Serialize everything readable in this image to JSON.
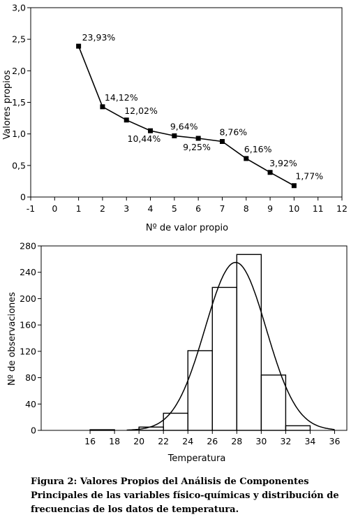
{
  "chart_data": [
    {
      "type": "line",
      "ylabel": "Valores propios",
      "xlabel": "Nº de valor propio",
      "xlim": [
        -1,
        12
      ],
      "ylim": [
        0,
        3.0
      ],
      "x_ticks": [
        "-1",
        "0",
        "1",
        "2",
        "3",
        "4",
        "5",
        "6",
        "7",
        "8",
        "9",
        "10",
        "11",
        "12"
      ],
      "y_ticks": [
        "0",
        "0,5",
        "1,0",
        "1,5",
        "2,0",
        "2,5",
        "3,0"
      ],
      "x": [
        1,
        2,
        3,
        4,
        5,
        6,
        7,
        8,
        9,
        10
      ],
      "values": [
        2.39,
        1.43,
        1.22,
        1.05,
        0.97,
        0.93,
        0.88,
        0.61,
        0.39,
        0.18
      ],
      "point_labels": [
        "23,93%",
        "14,12%",
        "12,02%",
        "10,44%",
        "9,64%",
        "9,25%",
        "8,76%",
        "6,16%",
        "3,92%",
        "1,77%"
      ],
      "grid": false
    },
    {
      "type": "bar",
      "ylabel": "Nº de observaciones",
      "xlabel": "Temperatura",
      "xlim": [
        12,
        37
      ],
      "ylim": [
        0,
        280
      ],
      "x_ticks": [
        "16",
        "18",
        "20",
        "22",
        "24",
        "26",
        "28",
        "30",
        "32",
        "34",
        "36"
      ],
      "y_ticks": [
        "0",
        "40",
        "80",
        "120",
        "160",
        "200",
        "240",
        "280"
      ],
      "bins": [
        [
          16,
          18
        ],
        [
          18,
          20
        ],
        [
          20,
          22
        ],
        [
          22,
          24
        ],
        [
          24,
          26
        ],
        [
          26,
          28
        ],
        [
          28,
          30
        ],
        [
          30,
          32
        ],
        [
          32,
          34
        ],
        [
          34,
          36
        ]
      ],
      "values": [
        1,
        0,
        5,
        26,
        121,
        217,
        267,
        84,
        7,
        0
      ],
      "normal_curve": {
        "mean": 27.9,
        "sd": 2.5,
        "peak": 255
      },
      "grid": false
    }
  ],
  "caption": "Figura 2: Valores Propios del Análisis de Componentes Principales de las variables físico-químicas y distribución de frecuencias de los datos de temperatura."
}
